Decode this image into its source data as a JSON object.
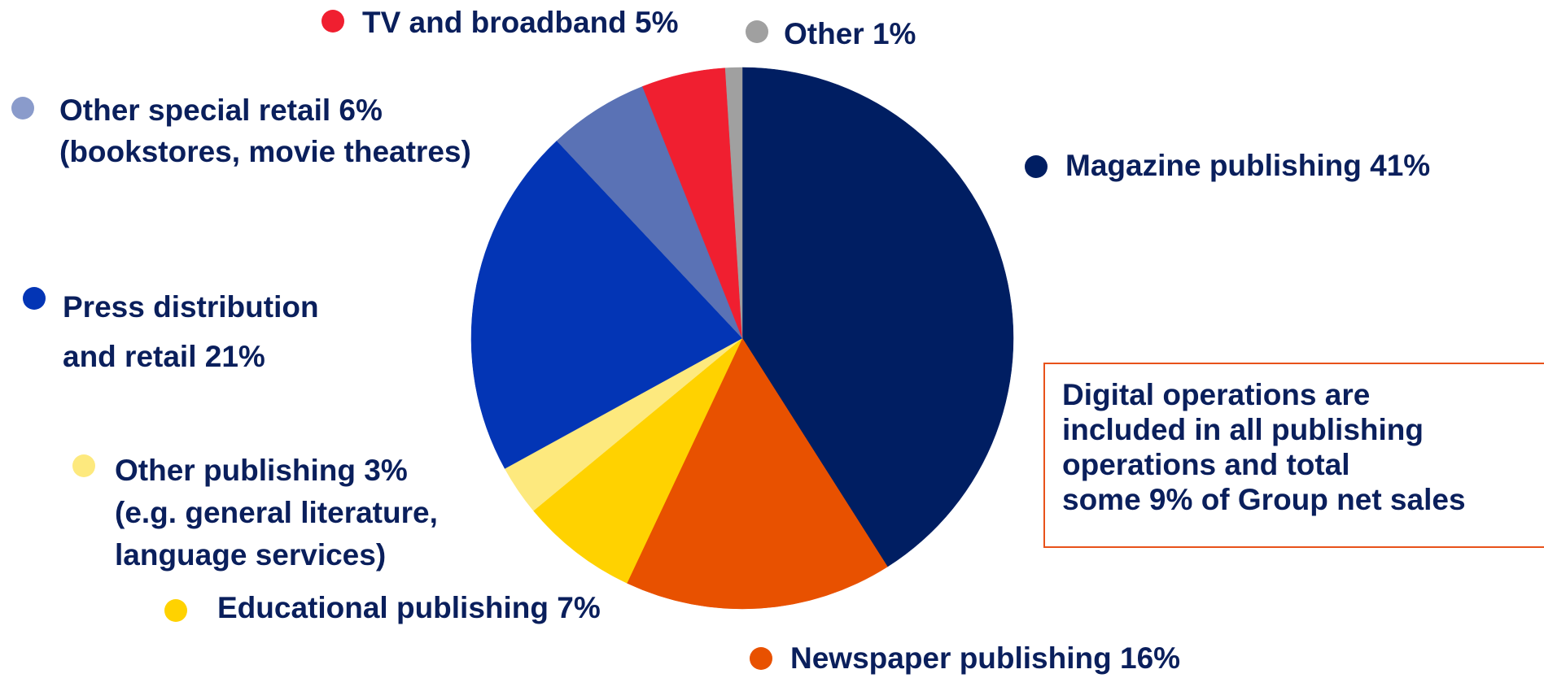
{
  "chart_data": {
    "type": "pie",
    "slices": [
      {
        "label_lines": [
          "Magazine publishing 41%"
        ],
        "value": 41,
        "color": "#001e62"
      },
      {
        "label_lines": [
          "Newspaper publishing 16%"
        ],
        "value": 16,
        "color": "#e85100"
      },
      {
        "label_lines": [
          "Educational publishing 7%"
        ],
        "value": 7,
        "color": "#ffd200"
      },
      {
        "label_lines": [
          "Other publishing 3%",
          "(e.g. general literature,",
          "language services)"
        ],
        "value": 3,
        "color": "#fde97e"
      },
      {
        "label_lines": [
          "Press distribution",
          "and retail 21%"
        ],
        "value": 21,
        "color": "#0335b5"
      },
      {
        "label_lines": [
          "Other special retail 6%",
          "(bookstores, movie theatres)"
        ],
        "value": 6,
        "color": "#5a72b5"
      },
      {
        "label_lines": [
          "TV and broadband 5%"
        ],
        "value": 5,
        "color": "#f01f30"
      },
      {
        "label_lines": [
          "Other 1%"
        ],
        "value": 1,
        "color": "#a0a0a0"
      }
    ],
    "start_angle_deg": 0,
    "direction": "clockwise",
    "legend_dot_colors": [
      "#001e62",
      "#e85100",
      "#ffd200",
      "#fde97e",
      "#0335b5",
      "#8a9bcb",
      "#f01f30",
      "#a0a0a0"
    ]
  },
  "note": {
    "lines": [
      "Digital operations are",
      "included in all publishing",
      "operations and total",
      "some 9% of Group net sales"
    ]
  }
}
